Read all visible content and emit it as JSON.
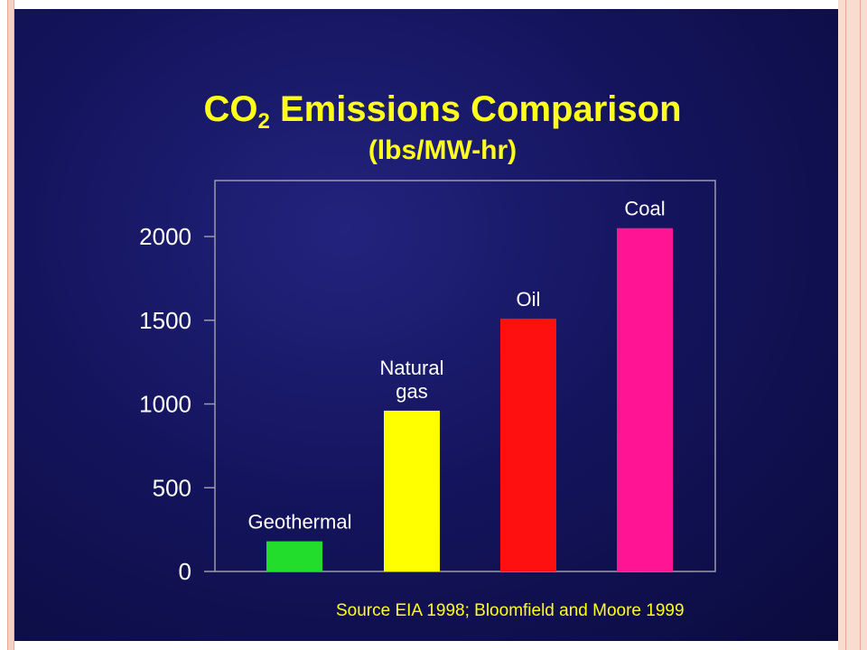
{
  "colors": {
    "title": "#ffff1a",
    "axis": "#9a9ab0",
    "tick_label": "#ffffff",
    "bar_label": "#ffffff",
    "background": "#14145e"
  },
  "chart_data": {
    "type": "bar",
    "title_main": "CO",
    "title_sub": "2",
    "title_rest": " Emissions Comparison",
    "subtitle": "(lbs/MW-hr)",
    "categories": [
      "Geothermal",
      "Natural gas",
      "Oil",
      "Coal"
    ],
    "category_label_lines": [
      [
        "Geothermal"
      ],
      [
        "Natural",
        "gas"
      ],
      [
        "Oil"
      ],
      [
        "Coal"
      ]
    ],
    "values": [
      180,
      960,
      1510,
      2050
    ],
    "bar_colors": [
      "#22dd2c",
      "#ffff00",
      "#ff1010",
      "#ff1493"
    ],
    "yticks": [
      0,
      500,
      1000,
      1500,
      2000
    ],
    "ytick_labels": [
      "0",
      "500",
      "1000",
      "1500",
      "2000"
    ],
    "ylim": [
      0,
      2000
    ],
    "legend": "none",
    "grid": false
  },
  "source": "Source EIA 1998; Bloomfield and Moore 1999"
}
